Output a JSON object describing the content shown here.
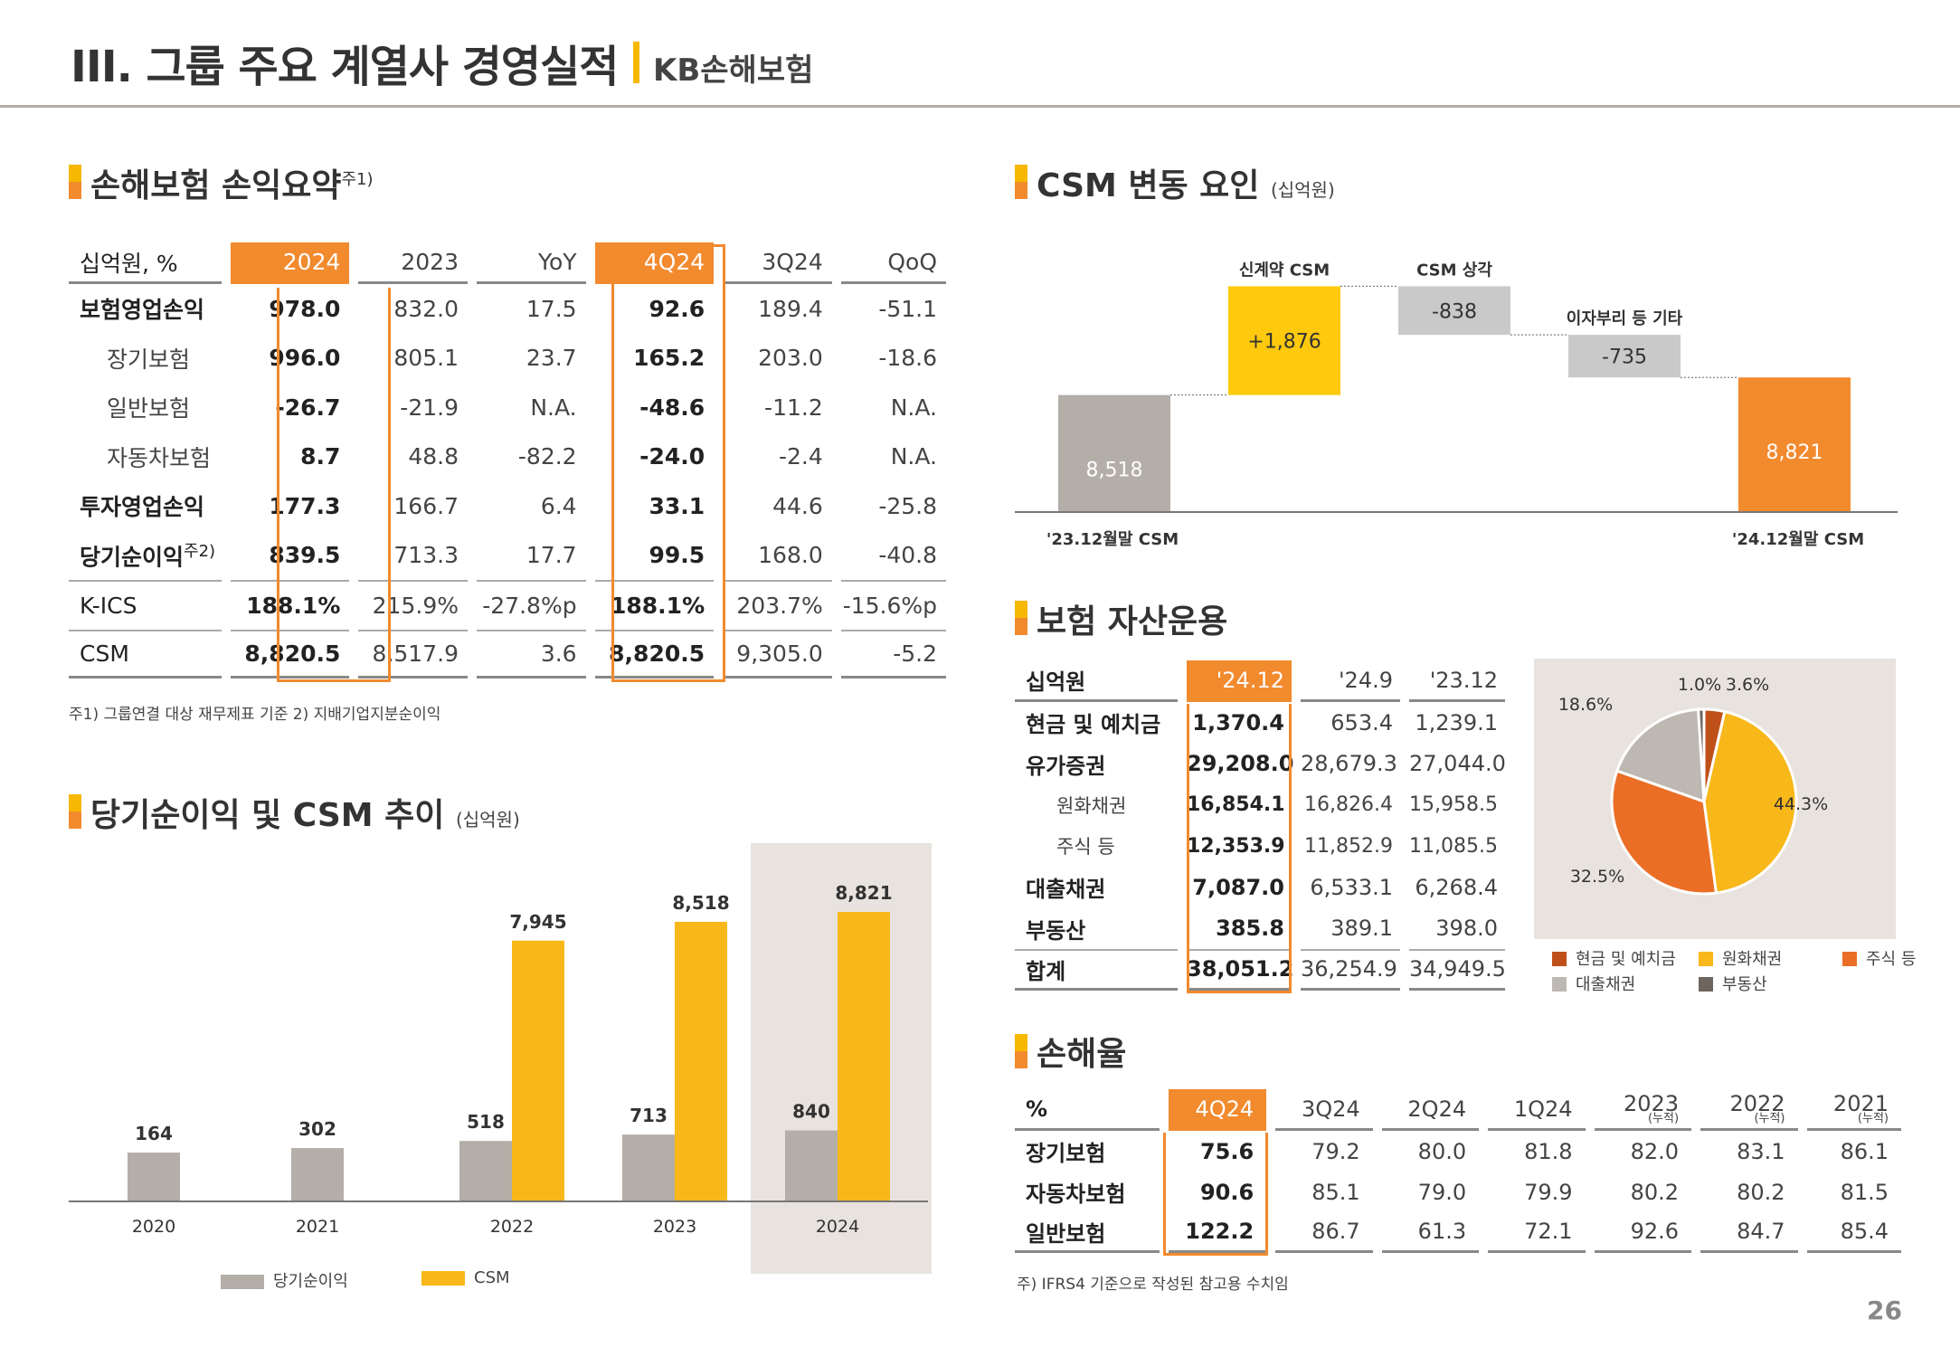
{
  "header": {
    "title": "III. 그룹 주요 계열사 경영실적",
    "subtitle": "KB손해보험",
    "page_number": "26"
  },
  "colors": {
    "accent_orange": "#f28a2e",
    "accent_yellow": "#f6b800",
    "gray_bar": "#b4aea8",
    "csm_yellow": "#f8b81a",
    "highlight_panel": "#e8e3de",
    "waterfall_new": "#ffc90e",
    "waterfall_neg": "#c9c9c9",
    "waterfall_end": "#f28a2e"
  },
  "income_summary": {
    "title": "손해보험 손익요약",
    "title_note": "주1)",
    "headers": [
      "십억원, %",
      "2024",
      "2023",
      "YoY",
      "4Q24",
      "3Q24",
      "QoQ"
    ],
    "rows": [
      {
        "label": "보험영업손익",
        "values": [
          "978.0",
          "832.0",
          "17.5",
          "92.6",
          "189.4",
          "-51.1"
        ]
      },
      {
        "label": "장기보험",
        "values": [
          "996.0",
          "805.1",
          "23.7",
          "165.2",
          "203.0",
          "-18.6"
        ]
      },
      {
        "label": "일반보험",
        "values": [
          "-26.7",
          "-21.9",
          "N.A.",
          "-48.6",
          "-11.2",
          "N.A."
        ]
      },
      {
        "label": "자동차보험",
        "values": [
          "8.7",
          "48.8",
          "-82.2",
          "-24.0",
          "-2.4",
          "N.A."
        ]
      },
      {
        "label": "투자영업손익",
        "values": [
          "177.3",
          "166.7",
          "6.4",
          "33.1",
          "44.6",
          "-25.8"
        ]
      },
      {
        "label": "당기순이익",
        "label_note": "주2)",
        "values": [
          "839.5",
          "713.3",
          "17.7",
          "99.5",
          "168.0",
          "-40.8"
        ]
      },
      {
        "label": "K-ICS",
        "values": [
          "188.1%",
          "215.9%",
          "-27.8%p",
          "188.1%",
          "203.7%",
          "-15.6%p"
        ]
      },
      {
        "label": "CSM",
        "values": [
          "8,820.5",
          "8,517.9",
          "3.6",
          "8,820.5",
          "9,305.0",
          "-5.2"
        ]
      }
    ],
    "footnote": "주1) 그룹연결 대상 재무제표 기준   2) 지배기업지분순이익"
  },
  "trend_chart": {
    "title": "당기순이익 및 CSM 추이",
    "unit": "(십억원)",
    "chart_data": {
      "type": "bar",
      "categories": [
        "2020",
        "2021",
        "2022",
        "2023",
        "2024"
      ],
      "series": [
        {
          "name": "당기순이익",
          "values": [
            164,
            302,
            518,
            713,
            840
          ]
        },
        {
          "name": "CSM",
          "values": [
            null,
            null,
            7945,
            8518,
            8821
          ]
        }
      ],
      "value_labels": {
        "net_income": [
          "164",
          "302",
          "518",
          "713",
          "840"
        ],
        "csm": [
          "",
          "",
          "7,945",
          "8,518",
          "8,821"
        ]
      },
      "highlight_category": "2024",
      "grid": false,
      "legend": "bottom"
    }
  },
  "csm_waterfall": {
    "title": "CSM 변동 요인",
    "unit": "(십억원)",
    "chart_data": {
      "type": "bar",
      "subtype": "waterfall",
      "categories": [
        "'23.12월말 CSM",
        "신계약 CSM",
        "CSM 상각",
        "이자부리 등 기타",
        "'24.12월말 CSM"
      ],
      "values": [
        8518,
        1876,
        -838,
        -735,
        8821
      ],
      "value_labels": [
        "8,518",
        "+1,876",
        "-838",
        "-735",
        "8,821"
      ]
    }
  },
  "asset_management": {
    "title": "보험 자산운용",
    "headers": [
      "십억원",
      "'24.12",
      "'24.9",
      "'23.12"
    ],
    "rows": [
      {
        "label": "현금 및 예치금",
        "sub": false,
        "values": [
          "1,370.4",
          "653.4",
          "1,239.1"
        ]
      },
      {
        "label": "유가증권",
        "sub": false,
        "values": [
          "29,208.0",
          "28,679.3",
          "27,044.0"
        ]
      },
      {
        "label": "원화채권",
        "sub": true,
        "values": [
          "16,854.1",
          "16,826.4",
          "15,958.5"
        ]
      },
      {
        "label": "주식 등",
        "sub": true,
        "values": [
          "12,353.9",
          "11,852.9",
          "11,085.5"
        ]
      },
      {
        "label": "대출채권",
        "sub": false,
        "values": [
          "7,087.0",
          "6,533.1",
          "6,268.4"
        ]
      },
      {
        "label": "부동산",
        "sub": false,
        "values": [
          "385.8",
          "389.1",
          "398.0"
        ]
      },
      {
        "label": "합계",
        "sub": false,
        "values": [
          "38,051.2",
          "36,254.9",
          "34,949.5"
        ]
      }
    ],
    "pie_chart_data": {
      "type": "pie",
      "slices": [
        {
          "name": "현금 및 예치금",
          "value": 3.6,
          "label": "3.6%",
          "color": "#c0501a"
        },
        {
          "name": "원화채권",
          "value": 44.3,
          "label": "44.3%",
          "color": "#f8b81a"
        },
        {
          "name": "주식 등",
          "value": 32.5,
          "label": "32.5%",
          "color": "#ea6e25"
        },
        {
          "name": "대출채권",
          "value": 18.6,
          "label": "18.6%",
          "color": "#bdb8b2"
        },
        {
          "name": "부동산",
          "value": 1.0,
          "label": "1.0%",
          "color": "#6d655e"
        }
      ],
      "legend": "bottom"
    }
  },
  "loss_ratio": {
    "title": "손해율",
    "headers": [
      {
        "label": "%",
        "note": ""
      },
      {
        "label": "4Q24",
        "note": ""
      },
      {
        "label": "3Q24",
        "note": ""
      },
      {
        "label": "2Q24",
        "note": ""
      },
      {
        "label": "1Q24",
        "note": ""
      },
      {
        "label": "2023",
        "note": "(누적)"
      },
      {
        "label": "2022",
        "note": "(누적)"
      },
      {
        "label": "2021",
        "note": "(누적)"
      }
    ],
    "rows": [
      {
        "label": "장기보험",
        "values": [
          "75.6",
          "79.2",
          "80.0",
          "81.8",
          "82.0",
          "83.1",
          "86.1"
        ]
      },
      {
        "label": "자동차보험",
        "values": [
          "90.6",
          "85.1",
          "79.0",
          "79.9",
          "80.2",
          "80.2",
          "81.5"
        ]
      },
      {
        "label": "일반보험",
        "values": [
          "122.2",
          "86.7",
          "61.3",
          "72.1",
          "92.6",
          "84.7",
          "85.4"
        ]
      }
    ],
    "footnote": "주) IFRS4 기준으로 작성된 참고용 수치임"
  }
}
